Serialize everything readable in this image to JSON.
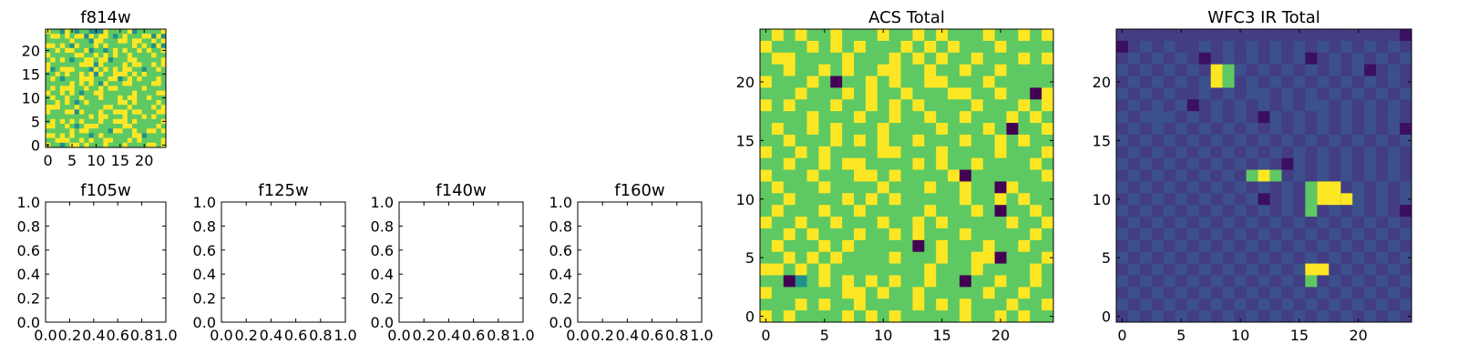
{
  "figure": {
    "colormap": [
      "#440154",
      "#3b528b",
      "#21918c",
      "#5ec962",
      "#fde725"
    ]
  },
  "chart_data": [
    {
      "type": "heatmap",
      "title": "f814w",
      "xticks": [
        "0",
        "5",
        "10",
        "15",
        "20"
      ],
      "yticks": [
        "0",
        "5",
        "10",
        "15",
        "20"
      ],
      "xlim": [
        -0.5,
        24.5
      ],
      "ylim": [
        -0.5,
        24.5
      ],
      "grid_size": 25,
      "colormap": "viridis",
      "rows": [
        "8665874765458766783776768",
        "6887868958798736976789585",
        "7667787765887769878866879",
        "8878758766868776778687585",
        "7786887685765787877878678",
        "8766678866878787786667877",
        "6878757788788577789766778",
        "8777776888587776878867868",
        "8568887675978686987756787",
        "7687877868587788878786777",
        "7874667888767895786866687",
        "7677786878758676987667887",
        "6868887786786887777787766",
        "8778786576887676678776788",
        "7877876877786778788768767",
        "6786875787677678868777796",
        "8886768766778977786767878",
        "8777885867787688878877688",
        "6776667778788667867787877",
        "7878786977786788878667768",
        "8866875788877766887777687",
        "7676786886777588779678868",
        "8878687775686767678857777",
        "7798866878778876786877678",
        "8675788787678777877678878"
      ]
    },
    {
      "type": "heatmap",
      "title": "f105w",
      "xticks": [
        "0.0",
        "0.2",
        "0.4",
        "0.6",
        "0.8",
        "1.0"
      ],
      "yticks": [
        "0.0",
        "0.2",
        "0.4",
        "0.6",
        "0.8",
        "1.0"
      ],
      "xlim": [
        0,
        1
      ],
      "ylim": [
        0,
        1
      ],
      "rows": []
    },
    {
      "type": "heatmap",
      "title": "f125w",
      "xticks": [
        "0.0",
        "0.2",
        "0.4",
        "0.6",
        "0.8",
        "1.0"
      ],
      "yticks": [
        "0.0",
        "0.2",
        "0.4",
        "0.6",
        "0.8",
        "1.0"
      ],
      "xlim": [
        0,
        1
      ],
      "ylim": [
        0,
        1
      ],
      "rows": []
    },
    {
      "type": "heatmap",
      "title": "f140w",
      "xticks": [
        "0.0",
        "0.2",
        "0.4",
        "0.6",
        "0.8",
        "1.0"
      ],
      "yticks": [
        "0.0",
        "0.2",
        "0.4",
        "0.6",
        "0.8",
        "1.0"
      ],
      "xlim": [
        0,
        1
      ],
      "ylim": [
        0,
        1
      ],
      "rows": []
    },
    {
      "type": "heatmap",
      "title": "f160w",
      "xticks": [
        "0.0",
        "0.2",
        "0.4",
        "0.6",
        "0.8",
        "1.0"
      ],
      "yticks": [
        "0.0",
        "0.2",
        "0.4",
        "0.6",
        "0.8",
        "1.0"
      ],
      "xlim": [
        0,
        1
      ],
      "ylim": [
        0,
        1
      ],
      "rows": []
    },
    {
      "type": "heatmap",
      "title": "ACS Total",
      "xticks": [
        "0",
        "5",
        "10",
        "15",
        "20"
      ],
      "yticks": [
        "0",
        "5",
        "10",
        "15",
        "20"
      ],
      "xlim": [
        -0.5,
        24.5
      ],
      "ylim": [
        -0.5,
        24.5
      ],
      "grid_size": 25,
      "colormap": "viridis",
      "rows": [
        "7878778676877868776877878",
        "8776878787678786877687767",
        "7887767877686878778767878",
        "6787787876887787687686777",
        "8777860778787788776877777",
        "7678777878778677887787708",
        "8787768778687877768777878",
        "7776877787787687787678786",
        "6877878677876778776870778",
        "7787768786877876787787867",
        "8778687777887778776687778",
        "7687787886777868778777687",
        "8776877788686777807767778",
        "7877786777877787787708676",
        "6787777878787677686787877",
        "7877687787777687778707787",
        "8678778677877878776778778",
        "7787877787687877787677686",
        "6877787867777068777877877",
        "7787878776787778778807678",
        "8878787677777687778767787",
        "7703787878787787707787687",
        "8777767887877867767877877",
        "7778687787777878787678778",
        "8787767878787777787787867"
      ]
    },
    {
      "type": "heatmap",
      "title": "WFC3 IR Total",
      "xticks": [
        "0",
        "5",
        "10",
        "15",
        "20"
      ],
      "yticks": [
        "0",
        "5",
        "10",
        "15",
        "20"
      ],
      "xlim": [
        -0.5,
        24.5
      ],
      "ylim": [
        -0.5,
        24.5
      ],
      "grid_size": 25,
      "colormap": "viridis",
      "rows": [
        "1111111111111111111111110",
        "0121211212121212121212121",
        "1212121012121212012121212",
        "2121212121212121212120121",
        "1212121212121212121212121",
        "2121211212122121212121212",
        "1212120121212121221212121",
        "2122212121210212121212121",
        "1212121212121212121212120",
        "2121212121212121212121212",
        "1212121212121212121212121",
        "2121212121212102121212121",
        "1212121212121212121212121",
        "2121212121212121212121212",
        "1212121212120121212121212",
        "2121212121212121212121210",
        "1212121212121212121212121",
        "2121212121212121212121212",
        "1212121212121212121212121",
        "2121212121212121212121212",
        "1212121212121212121212121",
        "2121212121212121212121212",
        "1212121212121212121212121",
        "2121212121212121212121212",
        "1212121212121212121212121"
      ],
      "hotspots": [
        {
          "x": 8,
          "y": 20,
          "w": 1,
          "h": 2,
          "level": 4
        },
        {
          "x": 9,
          "y": 20,
          "w": 1,
          "h": 2,
          "level": 3
        },
        {
          "x": 12,
          "y": 12,
          "w": 1,
          "h": 1,
          "level": 4
        },
        {
          "x": 11,
          "y": 12,
          "w": 1,
          "h": 1,
          "level": 3
        },
        {
          "x": 13,
          "y": 12,
          "w": 1,
          "h": 1,
          "level": 3
        },
        {
          "x": 17,
          "y": 10,
          "w": 2,
          "h": 2,
          "level": 4
        },
        {
          "x": 19,
          "y": 10,
          "w": 1,
          "h": 1,
          "level": 4
        },
        {
          "x": 16,
          "y": 9,
          "w": 1,
          "h": 3,
          "level": 3
        },
        {
          "x": 18,
          "y": 11,
          "w": 1,
          "h": 1,
          "level": 4
        },
        {
          "x": 16,
          "y": 4,
          "w": 2,
          "h": 1,
          "level": 4
        },
        {
          "x": 16,
          "y": 3,
          "w": 1,
          "h": 1,
          "level": 3
        }
      ]
    }
  ]
}
